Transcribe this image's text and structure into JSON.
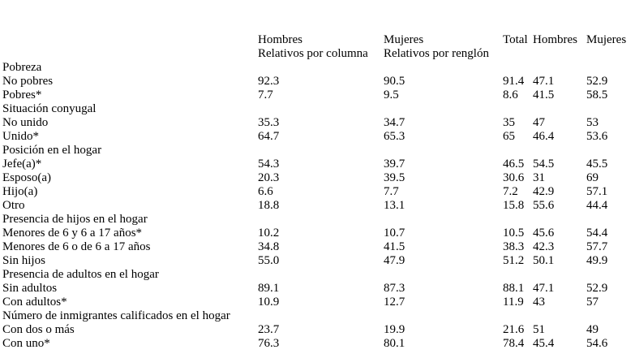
{
  "header": {
    "row1": [
      "",
      "Hombres",
      "Mujeres",
      "Total",
      "Hombres",
      "Mujeres"
    ],
    "row2": [
      "",
      "Relativos por columna",
      "Relativos por renglón",
      "",
      "",
      ""
    ]
  },
  "rows": [
    {
      "label": "Pobreza",
      "values": [
        "",
        "",
        "",
        "",
        ""
      ],
      "section": true
    },
    {
      "label": "No pobres",
      "values": [
        "92.3",
        "90.5",
        "91.4",
        "47.1",
        "52.9"
      ]
    },
    {
      "label": "Pobres*",
      "values": [
        "7.7",
        "9.5",
        "8.6",
        "41.5",
        "58.5"
      ]
    },
    {
      "label": "Situación conyugal",
      "values": [
        "",
        "",
        "",
        "",
        ""
      ],
      "section": true
    },
    {
      "label": "No unido",
      "values": [
        "35.3",
        "34.7",
        "35",
        "47",
        "53"
      ]
    },
    {
      "label": "Unido*",
      "values": [
        "64.7",
        "65.3",
        "65",
        "46.4",
        "53.6"
      ]
    },
    {
      "label": "Posición en el hogar",
      "values": [
        "",
        "",
        "",
        "",
        ""
      ],
      "section": true
    },
    {
      "label": "Jefe(a)*",
      "values": [
        "54.3",
        "39.7",
        "46.5",
        "54.5",
        "45.5"
      ]
    },
    {
      "label": "Esposo(a)",
      "values": [
        "20.3",
        "39.5",
        "30.6",
        "31",
        "69"
      ]
    },
    {
      "label": "Hijo(a)",
      "values": [
        "6.6",
        "7.7",
        "7.2",
        "42.9",
        "57.1"
      ]
    },
    {
      "label": "Otro",
      "values": [
        "18.8",
        "13.1",
        "15.8",
        "55.6",
        "44.4"
      ]
    },
    {
      "label": "Presencia de hijos en el hogar",
      "values": [
        "",
        "",
        "",
        "",
        ""
      ],
      "section": true
    },
    {
      "label": "Menores de 6 y 6 a 17 años*",
      "values": [
        "10.2",
        "10.7",
        "10.5",
        "45.6",
        "54.4"
      ]
    },
    {
      "label": "Menores de 6 o de 6 a 17 años",
      "values": [
        "34.8",
        "41.5",
        "38.3",
        "42.3",
        "57.7"
      ]
    },
    {
      "label": "Sin hijos",
      "values": [
        "55.0",
        "47.9",
        "51.2",
        "50.1",
        "49.9"
      ]
    },
    {
      "label": "Presencia de adultos en el hogar",
      "values": [
        "",
        "",
        "",
        "",
        ""
      ],
      "section": true
    },
    {
      "label": "Sin adultos",
      "values": [
        "89.1",
        "87.3",
        "88.1",
        "47.1",
        "52.9"
      ]
    },
    {
      "label": "Con adultos*",
      "values": [
        "10.9",
        "12.7",
        "11.9",
        "43",
        "57"
      ]
    },
    {
      "label": "Número de inmigrantes calificados en el hogar",
      "values": [
        "",
        "",
        "",
        "",
        ""
      ],
      "section": true
    },
    {
      "label": "Con dos o más",
      "values": [
        "23.7",
        "19.9",
        "21.6",
        "51",
        "49"
      ]
    },
    {
      "label": "Con uno*",
      "values": [
        "76.3",
        "80.1",
        "78.4",
        "45.4",
        "54.6"
      ]
    }
  ]
}
